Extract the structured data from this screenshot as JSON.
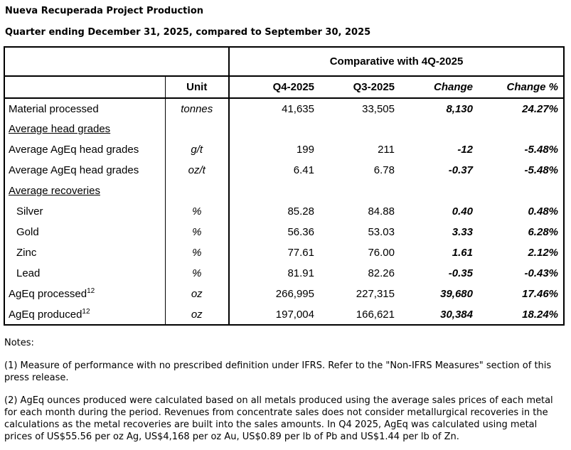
{
  "page": {
    "title": "Nueva Recuperada Project Production",
    "subtitle": "Quarter ending December 31, 2025, compared to September 30, 2025"
  },
  "table": {
    "comparative_header": "Comparative with 4Q-2025",
    "columns": {
      "unit": "Unit",
      "q4": "Q4-2025",
      "q3": "Q3-2025",
      "change": "Change",
      "change_pct": "Change %"
    },
    "rows": [
      {
        "type": "data",
        "label": "Material processed",
        "unit": "tonnes",
        "q4": "41,635",
        "q3": "33,505",
        "change": "8,130",
        "change_pct": "24.27%"
      },
      {
        "type": "section",
        "label": "Average head grades"
      },
      {
        "type": "data",
        "label": "Average AgEq head grades",
        "unit": "g/t",
        "q4": "199",
        "q3": "211",
        "change": "-12",
        "change_pct": "-5.48%"
      },
      {
        "type": "data",
        "label": "Average AgEq head grades",
        "unit": "oz/t",
        "q4": "6.41",
        "q3": "6.78",
        "change": "-0.37",
        "change_pct": "-5.48%"
      },
      {
        "type": "section",
        "label": "Average recoveries"
      },
      {
        "type": "data",
        "indent": true,
        "label": "Silver",
        "unit": "%",
        "q4": "85.28",
        "q3": "84.88",
        "change": "0.40",
        "change_pct": "0.48%"
      },
      {
        "type": "data",
        "indent": true,
        "label": "Gold",
        "unit": "%",
        "q4": "56.36",
        "q3": "53.03",
        "change": "3.33",
        "change_pct": "6.28%"
      },
      {
        "type": "data",
        "indent": true,
        "label": "Zinc",
        "unit": "%",
        "q4": "77.61",
        "q3": "76.00",
        "change": "1.61",
        "change_pct": "2.12%"
      },
      {
        "type": "data",
        "indent": true,
        "label": "Lead",
        "unit": "%",
        "q4": "81.91",
        "q3": "82.26",
        "change": "-0.35",
        "change_pct": "-0.43%"
      },
      {
        "type": "data",
        "label": "AgEq processed",
        "sup": "12",
        "unit": "oz",
        "q4": "266,995",
        "q3": "227,315",
        "change": "39,680",
        "change_pct": "17.46%"
      },
      {
        "type": "data",
        "label": "AgEq produced",
        "sup": "12",
        "unit": "oz",
        "q4": "197,004",
        "q3": "166,621",
        "change": "30,384",
        "change_pct": "18.24%"
      }
    ]
  },
  "notes": {
    "label": "Notes:",
    "items": [
      "(1) Measure of performance with no prescribed definition under IFRS. Refer to the \"Non-IFRS Measures\" section of this press release.",
      "(2) AgEq ounces produced were calculated based on all metals produced using the average sales prices of each metal for each month during the period. Revenues from concentrate sales does not consider metallurgical recoveries in the calculations as the metal recoveries are built into the sales amounts. In Q4 2025, AgEq was calculated using metal prices of US$55.56 per oz Ag, US$4,168 per oz Au, US$0.89 per lb of Pb and US$1.44 per lb of Zn."
    ]
  }
}
